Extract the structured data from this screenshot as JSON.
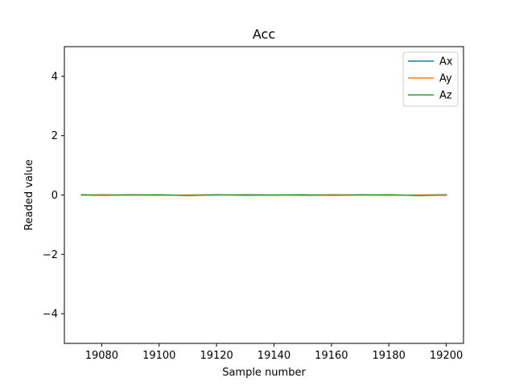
{
  "chart_data": {
    "type": "line",
    "title": "Acc",
    "xlabel": "Sample number",
    "ylabel": "Readed value",
    "xlim": [
      19067,
      19206
    ],
    "ylim": [
      -5,
      5
    ],
    "xticks": [
      19080,
      19100,
      19120,
      19140,
      19160,
      19180,
      19200
    ],
    "yticks": [
      -4,
      -2,
      0,
      2,
      4
    ],
    "ytick_labels": [
      "−4",
      "−2",
      "0",
      "2",
      "4"
    ],
    "grid": false,
    "legend_position": "top-right",
    "series": [
      {
        "name": "Ax",
        "color": "#1f77b4",
        "x": [
          19073,
          19080,
          19090,
          19100,
          19110,
          19120,
          19130,
          19140,
          19150,
          19160,
          19170,
          19180,
          19190,
          19200
        ],
        "values": [
          0.01,
          0.0,
          0.01,
          0.0,
          -0.01,
          0.0,
          0.01,
          0.0,
          -0.01,
          0.0,
          0.01,
          0.0,
          -0.01,
          0.0
        ]
      },
      {
        "name": "Ay",
        "color": "#ff7f0e",
        "x": [
          19073,
          19080,
          19090,
          19100,
          19110,
          19120,
          19130,
          19140,
          19150,
          19160,
          19170,
          19180,
          19190,
          19200
        ],
        "values": [
          0.0,
          0.01,
          0.0,
          -0.01,
          0.0,
          0.01,
          0.0,
          -0.01,
          0.0,
          0.01,
          0.0,
          -0.01,
          0.0,
          0.01
        ]
      },
      {
        "name": "Az",
        "color": "#2ca02c",
        "x": [
          19073,
          19080,
          19090,
          19100,
          19110,
          19120,
          19130,
          19140,
          19150,
          19160,
          19170,
          19180,
          19190,
          19200
        ],
        "values": [
          0.0,
          -0.01,
          0.0,
          0.01,
          -0.02,
          0.01,
          -0.01,
          0.0,
          0.01,
          -0.01,
          0.0,
          0.01,
          -0.02,
          0.0
        ]
      }
    ]
  }
}
